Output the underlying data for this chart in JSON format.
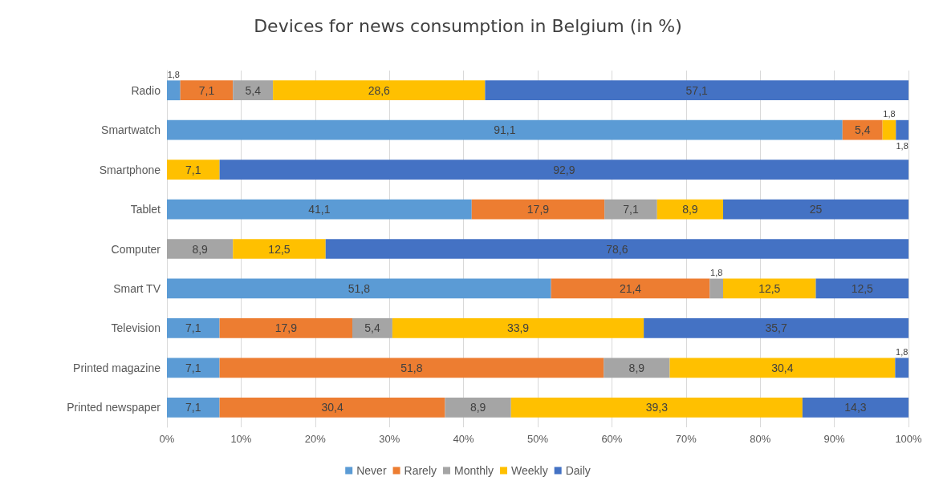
{
  "chart_data": {
    "type": "bar",
    "title": "Devices for news consumption in Belgium (in %)",
    "orientation": "horizontal",
    "stacked": true,
    "categories": [
      "Radio",
      "Smartwatch",
      "Smartphone",
      "Tablet",
      "Computer",
      "Smart TV",
      "Television",
      "Printed magazine",
      "Printed newspaper"
    ],
    "series": [
      {
        "name": "Never",
        "color": "#5b9bd5",
        "values": [
          1.8,
          91.1,
          null,
          41.1,
          null,
          51.8,
          7.1,
          7.1,
          7.1
        ],
        "value_labels": [
          "1,8",
          "91,1",
          null,
          "41,1",
          null,
          "51,8",
          "7,1",
          "7,1",
          "7,1"
        ]
      },
      {
        "name": "Rarely",
        "color": "#ed7d31",
        "values": [
          7.1,
          5.4,
          null,
          17.9,
          null,
          21.4,
          17.9,
          51.8,
          30.4
        ],
        "value_labels": [
          "7,1",
          "5,4",
          null,
          "17,9",
          null,
          "21,4",
          "17,9",
          "51,8",
          "30,4"
        ]
      },
      {
        "name": "Monthly",
        "color": "#a5a5a5",
        "values": [
          5.4,
          null,
          null,
          7.1,
          8.9,
          1.8,
          5.4,
          8.9,
          8.9
        ],
        "value_labels": [
          "5,4",
          null,
          null,
          "7,1",
          "8,9",
          "1,8",
          "5,4",
          "8,9",
          "8,9"
        ]
      },
      {
        "name": "Weekly",
        "color": "#ffc000",
        "values": [
          28.6,
          1.8,
          7.1,
          8.9,
          12.5,
          12.5,
          33.9,
          30.4,
          39.3
        ],
        "value_labels": [
          "28,6",
          "1,8",
          "7,1",
          "8,9",
          "12,5",
          "12,5",
          "33,9",
          "30,4",
          "39,3"
        ]
      },
      {
        "name": "Daily",
        "color": "#4472c4",
        "values": [
          57.1,
          1.8,
          92.9,
          25,
          78.6,
          12.5,
          35.7,
          1.8,
          14.3
        ],
        "value_labels": [
          "57,1",
          "1,8",
          "92,9",
          "25",
          "78,6",
          "12,5",
          "35,7",
          "1,8",
          "14,3"
        ]
      }
    ],
    "xlim": [
      0,
      100
    ],
    "xticks": [
      {
        "value": 0,
        "label": "0%"
      },
      {
        "value": 10,
        "label": "10%"
      },
      {
        "value": 20,
        "label": "20%"
      },
      {
        "value": 30,
        "label": "30%"
      },
      {
        "value": 40,
        "label": "40%"
      },
      {
        "value": 50,
        "label": "50%"
      },
      {
        "value": 60,
        "label": "60%"
      },
      {
        "value": 70,
        "label": "70%"
      },
      {
        "value": 80,
        "label": "80%"
      },
      {
        "value": 90,
        "label": "90%"
      },
      {
        "value": 100,
        "label": "100%"
      }
    ],
    "grid": "x",
    "legend": "bottom"
  }
}
